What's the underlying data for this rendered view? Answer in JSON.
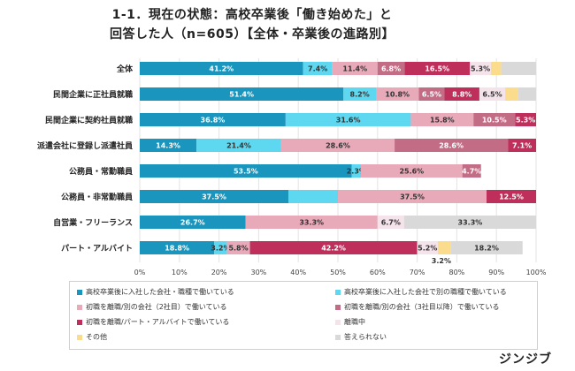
{
  "title_line1": "1-1．現在の状態：高校卒業後「働き始めた」と",
  "title_line2": "回答した人（n=605）【全体・卒業後の進路別】",
  "brand": "ジンジブ",
  "chart_data": {
    "type": "bar",
    "orientation": "horizontal",
    "stacked": "percent",
    "categories": [
      "全体",
      "民間企業に正社員就職",
      "民間企業に契約社員就職",
      "派遣会社に登録し派遣社員",
      "公務員・常勤職員",
      "公務員・非常勤職員",
      "自営業・フリーランス",
      "パート・アルバイト"
    ],
    "xlim": [
      0,
      100
    ],
    "xticks": [
      "0%",
      "10%",
      "20%",
      "30%",
      "40%",
      "50%",
      "60%",
      "70%",
      "80%",
      "90%",
      "100%"
    ],
    "grid": true,
    "legend_position": "bottom",
    "series": [
      {
        "name": "高校卒業後に入社した会社・職種で働いている",
        "color": "#1a95bd",
        "values": [
          41.2,
          51.4,
          36.8,
          14.3,
          53.5,
          37.5,
          26.7,
          18.8
        ],
        "labels": [
          "41.2%",
          "51.4%",
          "36.8%",
          "14.3%",
          "53.5%",
          "37.5%",
          "26.7%",
          "18.8%"
        ]
      },
      {
        "name": "高校卒業後に入社した会社で別の職種で働いている",
        "color": "#5ed8f0",
        "values": [
          7.4,
          8.2,
          31.6,
          21.4,
          2.3,
          12.5,
          0,
          3.2
        ],
        "labels": [
          "7.4%",
          "8.2%",
          "31.6%",
          "21.4%",
          "2.3%",
          "",
          "",
          "3.2%"
        ]
      },
      {
        "name": "初職を離職/別の会社（2社目）で働いている",
        "color": "#e8a9b9",
        "values": [
          11.4,
          10.8,
          15.8,
          28.6,
          25.6,
          37.5,
          33.3,
          5.8
        ],
        "labels": [
          "11.4%",
          "10.8%",
          "15.8%",
          "28.6%",
          "25.6%",
          "37.5%",
          "33.3%",
          "5.8%"
        ]
      },
      {
        "name": "初職を離職/別の会社（3社目以降）で働いている",
        "color": "#c36c86",
        "values": [
          6.8,
          6.5,
          10.5,
          28.6,
          4.7,
          0,
          0,
          0
        ],
        "labels": [
          "6.8%",
          "6.5%",
          "10.5%",
          "28.6%",
          "4.7%",
          "",
          "",
          ""
        ]
      },
      {
        "name": "初職を離職/パート・アルバイトで働いている",
        "color": "#bf2f5c",
        "values": [
          16.5,
          8.8,
          5.3,
          7.1,
          0,
          12.5,
          0,
          42.2
        ],
        "labels": [
          "16.5%",
          "8.8%",
          "5.3%",
          "7.1%",
          "",
          "12.5%",
          "",
          "42.2%"
        ]
      },
      {
        "name": "離職中",
        "color": "#f4e3ea",
        "values": [
          5.3,
          6.5,
          0,
          0,
          0,
          0,
          6.7,
          5.2
        ],
        "labels": [
          "5.3%",
          "6.5%",
          "",
          "",
          "",
          "",
          "6.7%",
          "5.2%"
        ]
      },
      {
        "name": "その他",
        "color": "#fbdc8c",
        "values": [
          2.6,
          3.2,
          0,
          0,
          0,
          0,
          0,
          3.2
        ],
        "labels": [
          "",
          "",
          "",
          "",
          "",
          "",
          "",
          "3.2%"
        ]
      },
      {
        "name": "答えられない",
        "color": "#d9d9d9",
        "values": [
          8.8,
          4.6,
          0,
          0,
          0,
          0,
          33.3,
          18.2
        ],
        "labels": [
          "",
          "",
          "",
          "",
          "",
          "",
          "33.3%",
          "18.2%"
        ]
      }
    ]
  }
}
